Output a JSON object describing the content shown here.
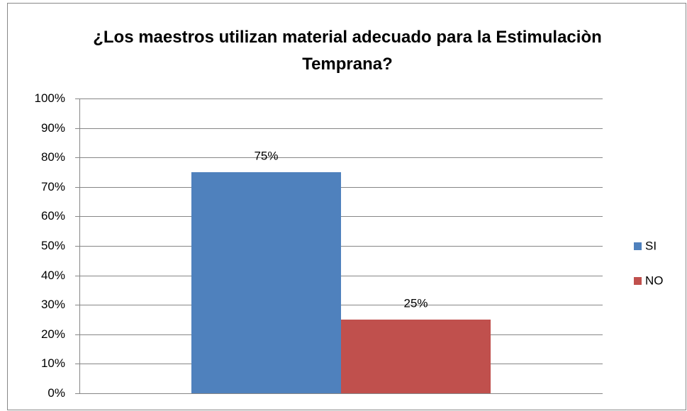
{
  "chart_data": {
    "type": "bar",
    "title": "¿Los maestros utilizan material adecuado para la Estimulaciòn Temprana?",
    "categories": [
      null
    ],
    "series": [
      {
        "name": "SI",
        "color": "#4f81bd",
        "values": [
          75
        ],
        "value_labels": [
          "75%"
        ]
      },
      {
        "name": "NO",
        "color": "#c0504d",
        "values": [
          25
        ],
        "value_labels": [
          "25%"
        ]
      }
    ],
    "ylim": [
      0,
      100
    ],
    "yticks": [
      {
        "value": 0,
        "label": "0%"
      },
      {
        "value": 10,
        "label": "10%"
      },
      {
        "value": 20,
        "label": "20%"
      },
      {
        "value": 30,
        "label": "30%"
      },
      {
        "value": 40,
        "label": "40%"
      },
      {
        "value": 50,
        "label": "50%"
      },
      {
        "value": 60,
        "label": "60%"
      },
      {
        "value": 70,
        "label": "70%"
      },
      {
        "value": 80,
        "label": "80%"
      },
      {
        "value": 90,
        "label": "90%"
      },
      {
        "value": 100,
        "label": "100%"
      }
    ],
    "grid": true,
    "legend": "right"
  }
}
